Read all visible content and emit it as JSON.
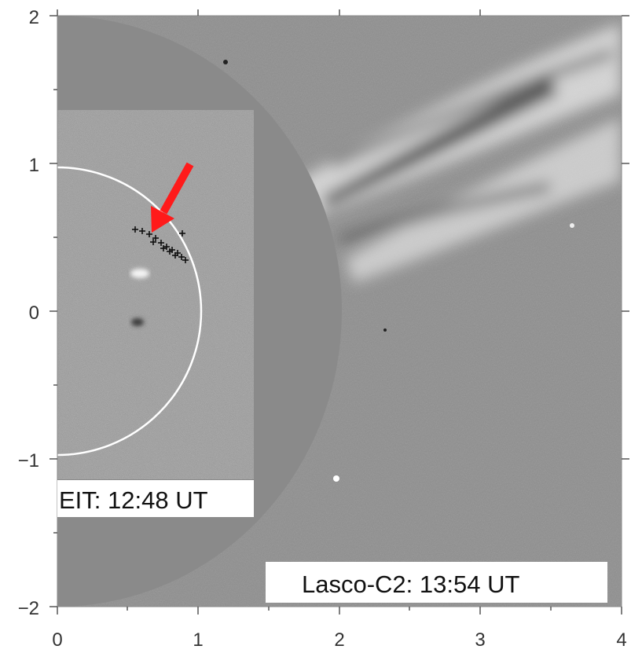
{
  "x_tick_labels": [
    "0",
    "1",
    "2",
    "3",
    "4"
  ],
  "y_tick_labels": [
    "2",
    "1",
    "0",
    "−1",
    "−2"
  ],
  "eit_label": "EIT: 12:48 UT",
  "lasco_label": "Lasco-C2: 13:54  UT",
  "arrow_color": "#ff1a1a",
  "marker_symbol": "+",
  "panel_gray": "#8a8a8a"
}
